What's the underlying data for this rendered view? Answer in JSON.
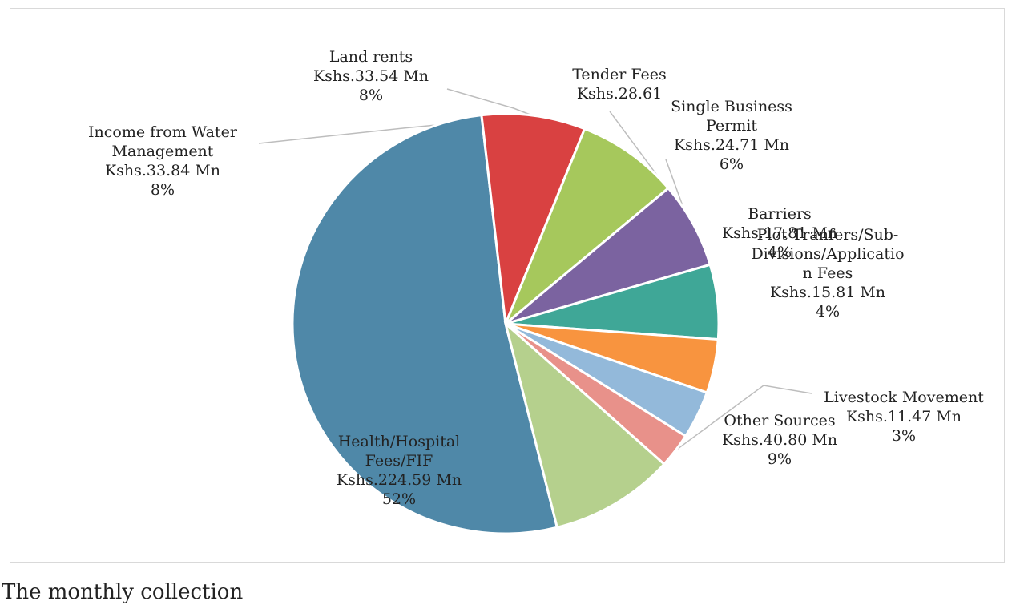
{
  "chart_data": {
    "type": "pie",
    "title": "",
    "legend": "none",
    "slices": [
      {
        "label": "Health/Hospital Fees/FIF",
        "amount_label": "Kshs.224.59 Mn",
        "value": 224.59,
        "percent_label": "52%",
        "color": "#4f88a8"
      },
      {
        "label": "Income from Water Management",
        "amount_label": "Kshs.33.84 Mn",
        "value": 33.84,
        "percent_label": "8%",
        "color": "#d94141"
      },
      {
        "label": "Land rents",
        "amount_label": "Kshs.33.54 Mn",
        "value": 33.54,
        "percent_label": "8%",
        "color": "#a6c85c"
      },
      {
        "label": "Tender Fees",
        "amount_label": "Kshs.28.61 Mn",
        "value": 28.61,
        "percent_label": "7%",
        "color": "#7b63a0"
      },
      {
        "label": "Single Business Permit",
        "amount_label": "Kshs.24.71 Mn",
        "value": 24.71,
        "percent_label": "6%",
        "color": "#3fa797"
      },
      {
        "label": "Barriers",
        "amount_label": "Kshs.17.81 Mn",
        "value": 17.81,
        "percent_label": "4%",
        "color": "#f8943f"
      },
      {
        "label": "Plot Tranfers/Sub-Divisions/Application Fees",
        "amount_label": "Kshs.15.81 Mn",
        "value": 15.81,
        "percent_label": "4%",
        "color": "#93b9da"
      },
      {
        "label": "Livestock Movement",
        "amount_label": "Kshs.11.47 Mn",
        "value": 11.47,
        "percent_label": "3%",
        "color": "#e8918a"
      },
      {
        "label": "Other Sources",
        "amount_label": "Kshs.40.80 Mn",
        "value": 40.8,
        "percent_label": "9%",
        "color": "#b5d08d"
      }
    ]
  },
  "labels": {
    "health": {
      "text": "Health/Hospital\nFees/FIF\nKshs.224.59 Mn\n52%"
    },
    "water": {
      "text": "Income from Water\nManagement\nKshs.33.84 Mn\n8%"
    },
    "land": {
      "text": "Land rents\nKshs.33.54 Mn\n8%"
    },
    "tender": {
      "text": "Tender Fees\nKshs.28.61"
    },
    "sbp": {
      "text": "Single Business\nPermit\nKshs.24.71 Mn\n6%"
    },
    "barriers": {
      "text": "Barriers\nKshs.17.81 Mn\n4%"
    },
    "plot": {
      "text": "Plot Tranfers/Sub-\nDivisions/Applicatio\nn Fees\nKshs.15.81 Mn\n4%"
    },
    "livestock": {
      "text": "Livestock Movement\nKshs.11.47 Mn\n3%"
    },
    "other": {
      "text": "Other Sources\nKshs.40.80 Mn\n9%"
    }
  },
  "footer": {
    "text": "The monthly collection"
  }
}
